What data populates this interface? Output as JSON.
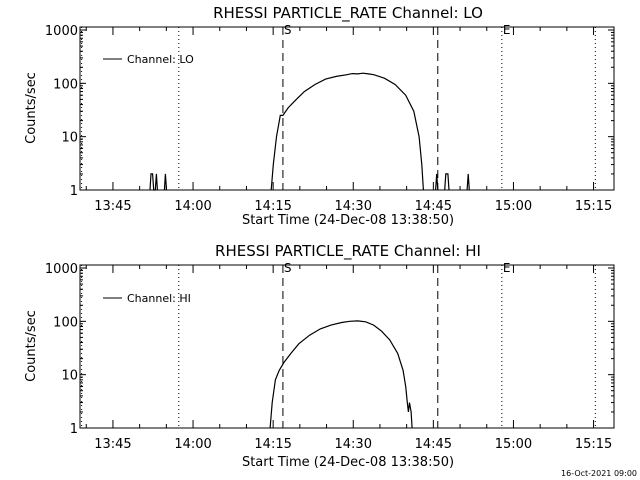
{
  "background_color": "#ffffff",
  "foreground_color": "#000000",
  "footer": {
    "timestamp": "16-Oct-2021 09:00"
  },
  "chart_data": [
    {
      "type": "line",
      "title": "RHESSI PARTICLE_RATE Channel: LO",
      "xlabel": "Start Time (24-Dec-08 13:38:50)",
      "ylabel": "Counts/sec",
      "y_scale": "log",
      "ylim": [
        1,
        1000
      ],
      "y_ticks": [
        1,
        10,
        100,
        1000
      ],
      "y_tick_labels": [
        "1",
        "10",
        "100",
        "1000"
      ],
      "x_unit": "minutes after 13:38:50",
      "xlim": [
        0,
        100
      ],
      "x_ticks": [
        6.17,
        21.17,
        36.17,
        51.17,
        66.17,
        81.17,
        96.17
      ],
      "x_tick_labels": [
        "13:45",
        "14:00",
        "14:15",
        "14:30",
        "14:45",
        "15:00",
        "15:15"
      ],
      "legend": {
        "position": "top-left",
        "entries": [
          "Channel: LO"
        ]
      },
      "markers": [
        {
          "label": "S",
          "x": 38.0,
          "style": "dashed"
        },
        {
          "label": "",
          "x": 67.0,
          "style": "dashed"
        },
        {
          "label": "E",
          "x": 79.0,
          "style": "dotted"
        },
        {
          "label": "",
          "x": 18.5,
          "style": "dotted"
        },
        {
          "label": "",
          "x": 96.5,
          "style": "dotted"
        },
        {
          "label": "",
          "x": 0.3,
          "style": "dotted"
        }
      ],
      "series": [
        {
          "name": "Channel: LO",
          "segments": [
            [
              [
                13.1,
                1
              ],
              [
                13.3,
                2
              ],
              [
                13.6,
                2
              ],
              [
                13.8,
                1
              ],
              [
                14.1,
                1
              ],
              [
                14.3,
                2
              ],
              [
                14.5,
                1
              ]
            ],
            [
              [
                15.8,
                1
              ],
              [
                16.0,
                2
              ],
              [
                16.2,
                1
              ]
            ],
            [
              [
                35.8,
                1
              ],
              [
                36.2,
                3
              ],
              [
                36.8,
                10
              ],
              [
                37.5,
                25
              ],
              [
                38.0,
                25
              ],
              [
                39.0,
                35
              ],
              [
                40.5,
                50
              ],
              [
                42.0,
                70
              ],
              [
                44.0,
                95
              ],
              [
                46.0,
                120
              ],
              [
                48.0,
                135
              ],
              [
                50.0,
                145
              ],
              [
                51.0,
                152
              ],
              [
                52.0,
                150
              ],
              [
                53.0,
                155
              ],
              [
                54.0,
                150
              ],
              [
                55.0,
                145
              ],
              [
                57.0,
                125
              ],
              [
                59.0,
                95
              ],
              [
                61.0,
                60
              ],
              [
                62.5,
                30
              ],
              [
                63.5,
                10
              ],
              [
                64.0,
                3
              ],
              [
                64.3,
                1
              ]
            ],
            [
              [
                66.6,
                1
              ],
              [
                66.8,
                2
              ],
              [
                67.0,
                1
              ]
            ],
            [
              [
                68.3,
                1
              ],
              [
                68.5,
                2
              ],
              [
                68.9,
                2
              ],
              [
                69.1,
                1
              ]
            ],
            [
              [
                72.5,
                1
              ],
              [
                72.7,
                2
              ],
              [
                72.9,
                1
              ]
            ]
          ]
        }
      ]
    },
    {
      "type": "line",
      "title": "RHESSI PARTICLE_RATE Channel: HI",
      "xlabel": "Start Time (24-Dec-08 13:38:50)",
      "ylabel": "Counts/sec",
      "y_scale": "log",
      "ylim": [
        1,
        1000
      ],
      "y_ticks": [
        1,
        10,
        100,
        1000
      ],
      "y_tick_labels": [
        "1",
        "10",
        "100",
        "1000"
      ],
      "x_unit": "minutes after 13:38:50",
      "xlim": [
        0,
        100
      ],
      "x_ticks": [
        6.17,
        21.17,
        36.17,
        51.17,
        66.17,
        81.17,
        96.17
      ],
      "x_tick_labels": [
        "13:45",
        "14:00",
        "14:15",
        "14:30",
        "14:45",
        "15:00",
        "15:15"
      ],
      "legend": {
        "position": "top-left",
        "entries": [
          "Channel: HI"
        ]
      },
      "markers": [
        {
          "label": "S",
          "x": 38.0,
          "style": "dashed"
        },
        {
          "label": "",
          "x": 67.0,
          "style": "dashed"
        },
        {
          "label": "E",
          "x": 79.0,
          "style": "dotted"
        },
        {
          "label": "",
          "x": 18.5,
          "style": "dotted"
        },
        {
          "label": "",
          "x": 96.5,
          "style": "dotted"
        },
        {
          "label": "",
          "x": 0.3,
          "style": "dotted"
        }
      ],
      "series": [
        {
          "name": "Channel: HI",
          "segments": [
            [
              [
                35.6,
                1
              ],
              [
                36.0,
                3
              ],
              [
                36.6,
                8
              ],
              [
                37.3,
                12
              ],
              [
                38.2,
                17
              ],
              [
                39.5,
                25
              ],
              [
                41.0,
                38
              ],
              [
                43.0,
                55
              ],
              [
                45.0,
                72
              ],
              [
                47.0,
                85
              ],
              [
                49.0,
                95
              ],
              [
                50.5,
                100
              ],
              [
                52.0,
                102
              ],
              [
                53.5,
                98
              ],
              [
                55.0,
                85
              ],
              [
                56.5,
                65
              ],
              [
                58.0,
                45
              ],
              [
                59.5,
                25
              ],
              [
                60.5,
                12
              ],
              [
                61.0,
                6
              ],
              [
                61.3,
                3
              ],
              [
                61.5,
                2
              ],
              [
                61.7,
                3
              ],
              [
                62.0,
                2
              ],
              [
                62.2,
                1
              ]
            ]
          ]
        }
      ]
    }
  ]
}
